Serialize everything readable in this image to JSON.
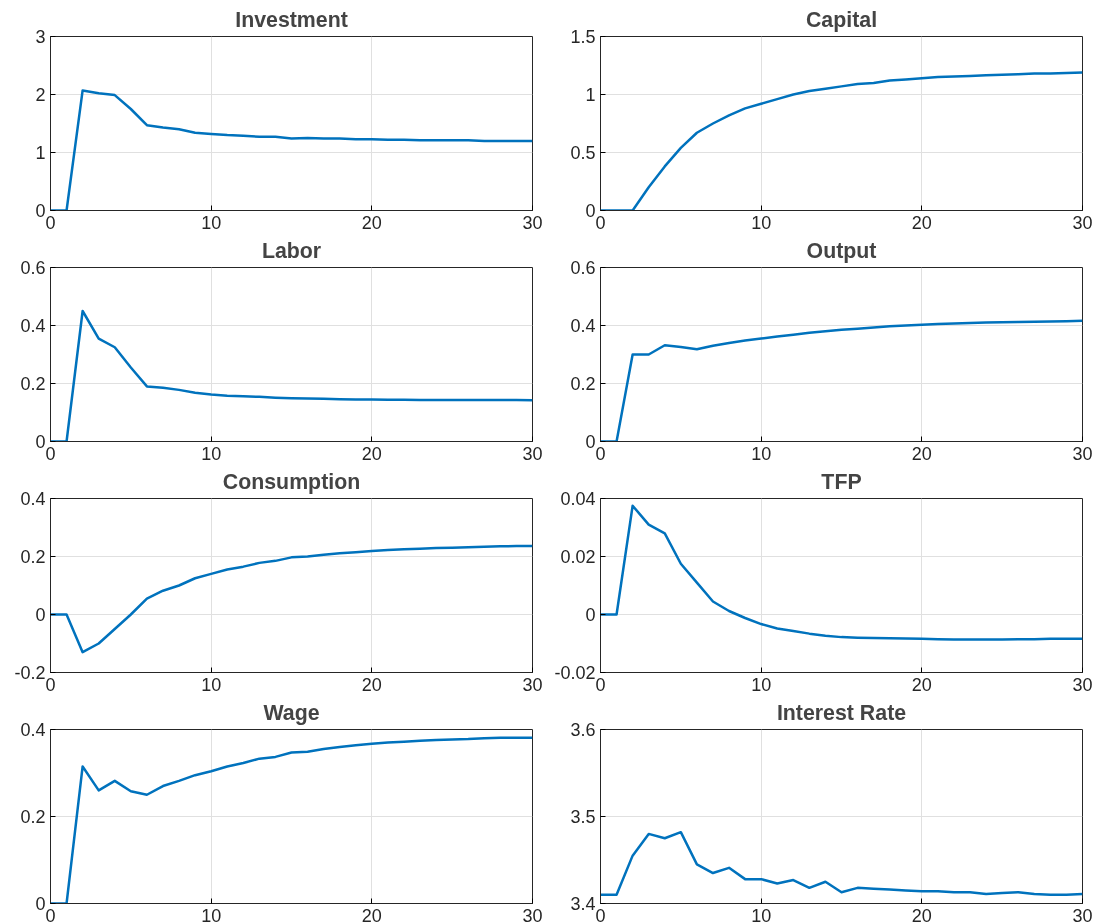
{
  "chart_data": [
    {
      "type": "line",
      "title": "Investment",
      "x": [
        0,
        1,
        2,
        3,
        4,
        5,
        6,
        7,
        8,
        9,
        10,
        11,
        12,
        13,
        14,
        15,
        16,
        17,
        18,
        19,
        20,
        21,
        22,
        23,
        24,
        25,
        26,
        27,
        28,
        29,
        30
      ],
      "series": [
        {
          "color": "#0072bd",
          "values": [
            0,
            0,
            2.07,
            2.02,
            1.99,
            1.75,
            1.47,
            1.43,
            1.4,
            1.34,
            1.32,
            1.3,
            1.29,
            1.27,
            1.27,
            1.24,
            1.25,
            1.24,
            1.24,
            1.23,
            1.23,
            1.22,
            1.22,
            1.21,
            1.21,
            1.21,
            1.21,
            1.2,
            1.2,
            1.2,
            1.2
          ]
        }
      ],
      "xlim": [
        0,
        30
      ],
      "xticks": [
        0,
        10,
        20,
        30
      ],
      "ylim": [
        0,
        3
      ],
      "yticks": [
        0,
        1,
        2,
        3
      ],
      "grid": true,
      "line_style": "solid"
    },
    {
      "type": "line",
      "title": "Capital",
      "x": [
        0,
        1,
        2,
        3,
        4,
        5,
        6,
        7,
        8,
        9,
        10,
        11,
        12,
        13,
        14,
        15,
        16,
        17,
        18,
        19,
        20,
        21,
        22,
        23,
        24,
        25,
        26,
        27,
        28,
        29,
        30
      ],
      "series": [
        {
          "color": "#0072bd",
          "values": [
            0,
            0,
            0,
            0.2,
            0.38,
            0.54,
            0.67,
            0.75,
            0.82,
            0.88,
            0.92,
            0.96,
            1.0,
            1.03,
            1.05,
            1.07,
            1.09,
            1.1,
            1.12,
            1.13,
            1.14,
            1.15,
            1.155,
            1.16,
            1.165,
            1.17,
            1.175,
            1.18,
            1.18,
            1.185,
            1.19
          ]
        }
      ],
      "xlim": [
        0,
        30
      ],
      "xticks": [
        0,
        10,
        20,
        30
      ],
      "ylim": [
        0,
        1.5
      ],
      "yticks": [
        0,
        0.5,
        1,
        1.5
      ],
      "grid": true,
      "line_style": "solid"
    },
    {
      "type": "line",
      "title": "Labor",
      "x": [
        0,
        1,
        2,
        3,
        4,
        5,
        6,
        7,
        8,
        9,
        10,
        11,
        12,
        13,
        14,
        15,
        16,
        17,
        18,
        19,
        20,
        21,
        22,
        23,
        24,
        25,
        26,
        27,
        28,
        29,
        30
      ],
      "series": [
        {
          "color": "#0072bd",
          "values": [
            0,
            0,
            0.45,
            0.355,
            0.325,
            0.255,
            0.19,
            0.185,
            0.178,
            0.168,
            0.162,
            0.158,
            0.156,
            0.154,
            0.151,
            0.149,
            0.148,
            0.147,
            0.146,
            0.145,
            0.145,
            0.144,
            0.144,
            0.143,
            0.143,
            0.143,
            0.143,
            0.143,
            0.143,
            0.143,
            0.142
          ]
        }
      ],
      "xlim": [
        0,
        30
      ],
      "xticks": [
        0,
        10,
        20,
        30
      ],
      "ylim": [
        0,
        0.6
      ],
      "yticks": [
        0,
        0.2,
        0.4,
        0.6
      ],
      "grid": true,
      "line_style": "solid"
    },
    {
      "type": "line",
      "title": "Output",
      "x": [
        0,
        1,
        2,
        3,
        4,
        5,
        6,
        7,
        8,
        9,
        10,
        11,
        12,
        13,
        14,
        15,
        16,
        17,
        18,
        19,
        20,
        21,
        22,
        23,
        24,
        25,
        26,
        27,
        28,
        29,
        30
      ],
      "series": [
        {
          "color": "#0072bd",
          "values": [
            0,
            0,
            0.3,
            0.3,
            0.332,
            0.326,
            0.318,
            0.33,
            0.34,
            0.348,
            0.355,
            0.362,
            0.368,
            0.375,
            0.38,
            0.385,
            0.389,
            0.393,
            0.397,
            0.4,
            0.403,
            0.405,
            0.407,
            0.409,
            0.41,
            0.411,
            0.412,
            0.413,
            0.414,
            0.415,
            0.416
          ]
        }
      ],
      "xlim": [
        0,
        30
      ],
      "xticks": [
        0,
        10,
        20,
        30
      ],
      "ylim": [
        0,
        0.6
      ],
      "yticks": [
        0,
        0.2,
        0.4,
        0.6
      ],
      "grid": true,
      "line_style": "solid"
    },
    {
      "type": "line",
      "title": "Consumption",
      "x": [
        0,
        1,
        2,
        3,
        4,
        5,
        6,
        7,
        8,
        9,
        10,
        11,
        12,
        13,
        14,
        15,
        16,
        17,
        18,
        19,
        20,
        21,
        22,
        23,
        24,
        25,
        26,
        27,
        28,
        29,
        30
      ],
      "series": [
        {
          "color": "#0072bd",
          "values": [
            0,
            0,
            -0.13,
            -0.1,
            -0.05,
            0.0,
            0.055,
            0.082,
            0.1,
            0.125,
            0.14,
            0.155,
            0.165,
            0.178,
            0.185,
            0.197,
            0.2,
            0.206,
            0.211,
            0.215,
            0.219,
            0.222,
            0.225,
            0.227,
            0.229,
            0.23,
            0.232,
            0.234,
            0.235,
            0.236,
            0.236
          ]
        }
      ],
      "xlim": [
        0,
        30
      ],
      "xticks": [
        0,
        10,
        20,
        30
      ],
      "ylim": [
        -0.2,
        0.4
      ],
      "yticks": [
        -0.2,
        0,
        0.2,
        0.4
      ],
      "grid": true,
      "line_style": "solid"
    },
    {
      "type": "line",
      "title": "TFP",
      "x": [
        0,
        1,
        2,
        3,
        4,
        5,
        6,
        7,
        8,
        9,
        10,
        11,
        12,
        13,
        14,
        15,
        16,
        17,
        18,
        19,
        20,
        21,
        22,
        23,
        24,
        25,
        26,
        27,
        28,
        29,
        30
      ],
      "series": [
        {
          "color": "#0072bd",
          "values": [
            0,
            0,
            0.0375,
            0.031,
            0.028,
            0.0175,
            0.011,
            0.0045,
            0.0012,
            -0.0012,
            -0.0033,
            -0.0048,
            -0.0057,
            -0.0066,
            -0.0073,
            -0.0078,
            -0.008,
            -0.0081,
            -0.0082,
            -0.0083,
            -0.0084,
            -0.0085,
            -0.0086,
            -0.0086,
            -0.0086,
            -0.0086,
            -0.0085,
            -0.0085,
            -0.0084,
            -0.0084,
            -0.0084
          ]
        }
      ],
      "xlim": [
        0,
        30
      ],
      "xticks": [
        0,
        10,
        20,
        30
      ],
      "ylim": [
        -0.02,
        0.04
      ],
      "yticks": [
        -0.02,
        0,
        0.02,
        0.04
      ],
      "grid": true,
      "line_style": "solid"
    },
    {
      "type": "line",
      "title": "Wage",
      "x": [
        0,
        1,
        2,
        3,
        4,
        5,
        6,
        7,
        8,
        9,
        10,
        11,
        12,
        13,
        14,
        15,
        16,
        17,
        18,
        19,
        20,
        21,
        22,
        23,
        24,
        25,
        26,
        27,
        28,
        29,
        30
      ],
      "series": [
        {
          "color": "#0072bd",
          "values": [
            0,
            0,
            0.315,
            0.26,
            0.282,
            0.258,
            0.25,
            0.27,
            0.282,
            0.295,
            0.304,
            0.315,
            0.323,
            0.333,
            0.337,
            0.347,
            0.349,
            0.355,
            0.36,
            0.364,
            0.367,
            0.37,
            0.372,
            0.374,
            0.376,
            0.377,
            0.378,
            0.38,
            0.381,
            0.381,
            0.381
          ]
        }
      ],
      "xlim": [
        0,
        30
      ],
      "xticks": [
        0,
        10,
        20,
        30
      ],
      "ylim": [
        0,
        0.4
      ],
      "yticks": [
        0,
        0.2,
        0.4
      ],
      "grid": true,
      "line_style": "solid"
    },
    {
      "type": "line",
      "title": "Interest Rate",
      "x": [
        0,
        1,
        2,
        3,
        4,
        5,
        6,
        7,
        8,
        9,
        10,
        11,
        12,
        13,
        14,
        15,
        16,
        17,
        18,
        19,
        20,
        21,
        22,
        23,
        24,
        25,
        26,
        27,
        28,
        29,
        30
      ],
      "series": [
        {
          "color": "#0072bd",
          "values": [
            3.41,
            3.41,
            3.455,
            3.48,
            3.475,
            3.482,
            3.445,
            3.435,
            3.441,
            3.428,
            3.428,
            3.423,
            3.427,
            3.418,
            3.425,
            3.413,
            3.418,
            3.417,
            3.416,
            3.415,
            3.414,
            3.414,
            3.413,
            3.413,
            3.411,
            3.412,
            3.413,
            3.411,
            3.41,
            3.41,
            3.411
          ]
        }
      ],
      "xlim": [
        0,
        30
      ],
      "xticks": [
        0,
        10,
        20,
        30
      ],
      "ylim": [
        3.4,
        3.6
      ],
      "yticks": [
        3.4,
        3.5,
        3.6
      ],
      "grid": true,
      "line_style": "solid"
    }
  ]
}
